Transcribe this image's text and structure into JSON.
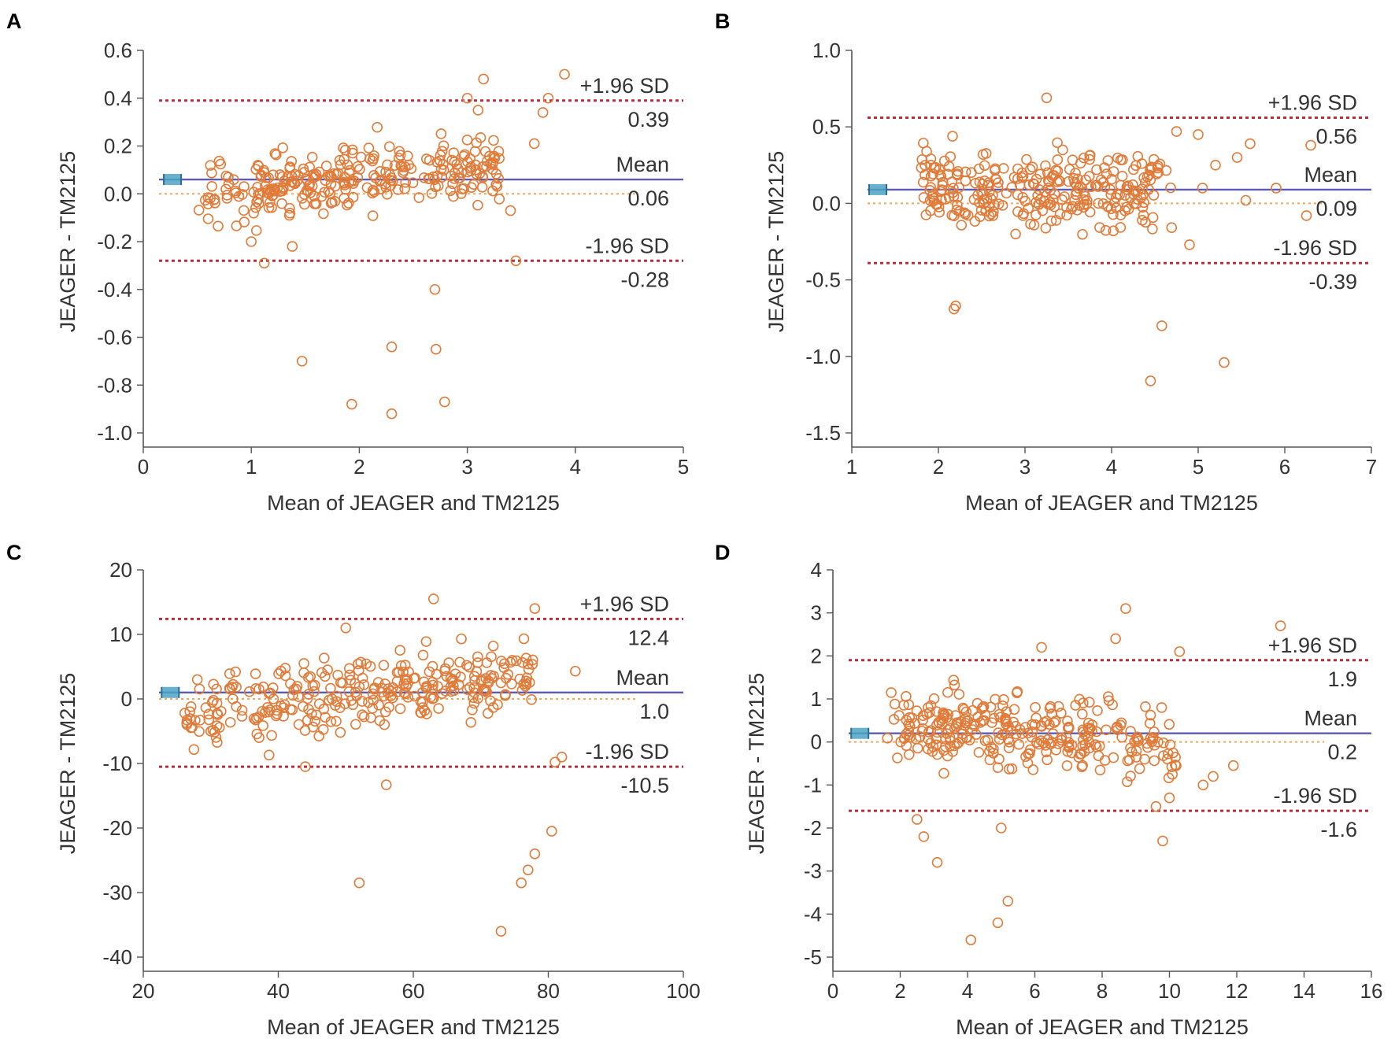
{
  "colors": {
    "point": "#E07B39",
    "mean_line": "#5B5BB5",
    "sd_line": "#B03040",
    "zero_line": "#F2A65A",
    "mean_marker": "#4BA3C3",
    "axis": "#555555"
  },
  "chart_data": [
    {
      "panel": "A",
      "type": "scatter",
      "xlabel": "Mean of JEAGER and TM2125",
      "ylabel": "JEAGER - TM2125",
      "xlim": [
        0,
        5
      ],
      "ylim": [
        -1.0,
        0.6
      ],
      "xticks": [
        0,
        1,
        2,
        3,
        4,
        5
      ],
      "yticks": [
        0.6,
        0.4,
        0.2,
        0.0,
        -0.2,
        -0.4,
        -0.6,
        -0.8,
        -1.0
      ],
      "xtick_labels": [
        "0",
        "1",
        "2",
        "3",
        "4",
        "5"
      ],
      "ytick_labels": [
        "0.6",
        "0.4",
        "0.2",
        "0.0",
        "-0.2",
        "-0.4",
        "-0.6",
        "-0.8",
        "-1.0"
      ],
      "upper_label": "+1.96 SD",
      "upper_value": "0.39",
      "upper": 0.39,
      "mean_label": "Mean",
      "mean_value": "0.06",
      "mean": 0.06,
      "lower_label": "-1.96 SD",
      "lower_value": "-0.28",
      "lower": -0.28,
      "mean_marker_x": 0.27,
      "cluster": {
        "n": 290,
        "xmin": 0.5,
        "xmax": 3.3,
        "ysd": 0.1,
        "trend": 0.05,
        "seed": 11
      },
      "outliers": [
        [
          1.47,
          -0.7
        ],
        [
          1.93,
          -0.88
        ],
        [
          2.3,
          -0.64
        ],
        [
          2.3,
          -0.92
        ],
        [
          2.7,
          -0.4
        ],
        [
          2.71,
          -0.65
        ],
        [
          2.79,
          -0.87
        ],
        [
          3.15,
          0.48
        ],
        [
          3.45,
          -0.28
        ],
        [
          3.7,
          0.34
        ],
        [
          3.75,
          0.4
        ],
        [
          3.9,
          0.5
        ],
        [
          3.62,
          0.21
        ],
        [
          3.4,
          -0.07
        ],
        [
          1.0,
          -0.2
        ],
        [
          1.12,
          -0.29
        ],
        [
          1.38,
          -0.22
        ],
        [
          3.0,
          0.4
        ],
        [
          3.1,
          0.35
        ]
      ]
    },
    {
      "panel": "B",
      "type": "scatter",
      "xlabel": "Mean of JEAGER and TM2125",
      "ylabel": "JEAGER - TM2125",
      "xlim": [
        1,
        7
      ],
      "ylim": [
        -1.5,
        1.0
      ],
      "xticks": [
        1,
        2,
        3,
        4,
        5,
        6,
        7
      ],
      "yticks": [
        1.0,
        0.5,
        0.0,
        -0.5,
        -1.0,
        -1.5
      ],
      "xtick_labels": [
        "1",
        "2",
        "3",
        "4",
        "5",
        "6",
        "7"
      ],
      "ytick_labels": [
        "1.0",
        "0.5",
        "0.0",
        "-0.5",
        "-1.0",
        "-1.5"
      ],
      "upper_label": "+1.96 SD",
      "upper_value": "0.56",
      "upper": 0.56,
      "mean_label": "Mean",
      "mean_value": "0.09",
      "mean": 0.09,
      "lower_label": "-1.96 SD",
      "lower_value": "-0.39",
      "lower": -0.39,
      "mean_marker_x": 1.3,
      "cluster": {
        "n": 290,
        "xmin": 1.8,
        "xmax": 4.7,
        "ysd": 0.18,
        "trend": 0.0,
        "seed": 23
      },
      "outliers": [
        [
          2.2,
          -0.67
        ],
        [
          2.18,
          -0.69
        ],
        [
          3.25,
          0.69
        ],
        [
          4.45,
          -1.16
        ],
        [
          4.58,
          -0.8
        ],
        [
          5.3,
          -1.04
        ],
        [
          5.6,
          0.39
        ],
        [
          6.3,
          0.38
        ],
        [
          6.25,
          -0.08
        ],
        [
          5.9,
          0.1
        ],
        [
          5.55,
          0.02
        ],
        [
          5.0,
          0.45
        ],
        [
          5.2,
          0.25
        ],
        [
          5.45,
          0.3
        ],
        [
          4.9,
          -0.27
        ],
        [
          5.05,
          0.1
        ],
        [
          4.75,
          0.47
        ]
      ]
    },
    {
      "panel": "C",
      "type": "scatter",
      "xlabel": "Mean of JEAGER and TM2125",
      "ylabel": "JEAGER - TM2125",
      "xlim": [
        20,
        100
      ],
      "ylim": [
        -40,
        20
      ],
      "xticks": [
        20,
        40,
        60,
        80,
        100
      ],
      "yticks": [
        20,
        10,
        0,
        -10,
        -20,
        -30,
        -40
      ],
      "xtick_labels": [
        "20",
        "40",
        "60",
        "80",
        "100"
      ],
      "ytick_labels": [
        "20",
        "10",
        "0",
        "-10",
        "-20",
        "-30",
        "-40"
      ],
      "upper_label": "+1.96 SD",
      "upper_value": "12.4",
      "upper": 12.4,
      "mean_label": "Mean",
      "mean_value": "1.0",
      "mean": 1.0,
      "lower_label": "-1.96 SD",
      "lower_value": "-10.5",
      "lower": -10.5,
      "mean_marker_x": 24,
      "cluster": {
        "n": 300,
        "xmin": 26,
        "xmax": 78,
        "ysd": 3.8,
        "trend": 3.0,
        "seed": 37
      },
      "outliers": [
        [
          52,
          -28.5
        ],
        [
          73,
          -36
        ],
        [
          76,
          -28.5
        ],
        [
          77,
          -26.5
        ],
        [
          78,
          -24
        ],
        [
          80.5,
          -20.5
        ],
        [
          56,
          -13.3
        ],
        [
          44,
          -10.5
        ],
        [
          63,
          15.5
        ],
        [
          78,
          14
        ],
        [
          50,
          11
        ],
        [
          84,
          4.3
        ],
        [
          81,
          -9.8
        ],
        [
          82,
          -9.0
        ],
        [
          30,
          -5
        ],
        [
          28,
          3
        ]
      ]
    },
    {
      "panel": "D",
      "type": "scatter",
      "xlabel": "Mean of JEAGER and TM2125",
      "ylabel": "JEAGER - TM2125",
      "xlim": [
        0,
        16
      ],
      "ylim": [
        -5,
        4
      ],
      "xticks": [
        0,
        2,
        4,
        6,
        8,
        10,
        12,
        14,
        16
      ],
      "yticks": [
        4,
        3,
        2,
        1,
        0,
        -1,
        -2,
        -3,
        -4,
        -5
      ],
      "xtick_labels": [
        "0",
        "2",
        "4",
        "6",
        "8",
        "10",
        "12",
        "14",
        "16"
      ],
      "ytick_labels": [
        "4",
        "3",
        "2",
        "1",
        "0",
        "-1",
        "-2",
        "-3",
        "-4",
        "-5"
      ],
      "upper_label": "+1.96 SD",
      "upper_value": "1.9",
      "upper": 1.9,
      "mean_label": "Mean",
      "mean_value": "0.2",
      "mean": 0.2,
      "lower_label": "-1.96 SD",
      "lower_value": "-1.6",
      "lower": -1.6,
      "mean_marker_x": 0.8,
      "cluster": {
        "n": 300,
        "xmin": 1.5,
        "xmax": 10.2,
        "ysd": 0.6,
        "trend": -0.25,
        "seed": 53
      },
      "outliers": [
        [
          4.1,
          -4.6
        ],
        [
          4.9,
          -4.2
        ],
        [
          5.2,
          -3.7
        ],
        [
          5.0,
          -2.0
        ],
        [
          3.1,
          -2.8
        ],
        [
          2.7,
          -2.2
        ],
        [
          2.5,
          -1.8
        ],
        [
          8.7,
          3.1
        ],
        [
          8.4,
          2.4
        ],
        [
          6.2,
          2.2
        ],
        [
          10.3,
          2.1
        ],
        [
          13.3,
          2.7
        ],
        [
          11.9,
          -0.55
        ],
        [
          9.8,
          -2.3
        ],
        [
          9.6,
          -1.5
        ],
        [
          11.3,
          -0.8
        ],
        [
          11.0,
          -1.0
        ],
        [
          10.0,
          -1.3
        ]
      ]
    }
  ]
}
